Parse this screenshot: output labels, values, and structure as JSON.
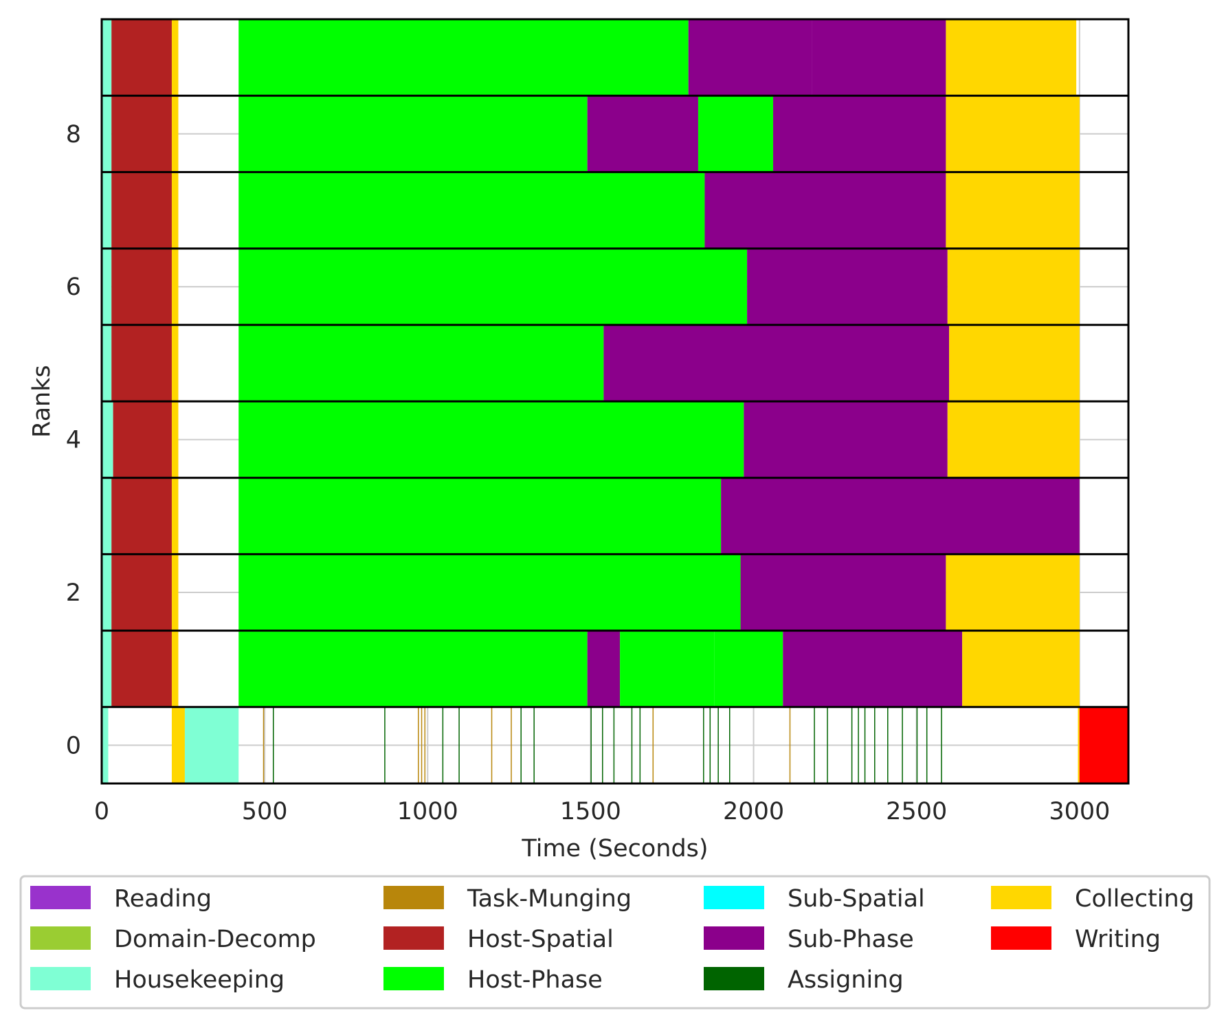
{
  "chart_data": {
    "type": "bar",
    "subtype": "gantt-timeline",
    "xlabel": "Time (Seconds)",
    "ylabel": "Ranks",
    "xlim": [
      0,
      3150
    ],
    "ylim": [
      -0.5,
      9.5
    ],
    "xticks": [
      "0",
      "500",
      "1000",
      "1500",
      "2000",
      "2500",
      "3000"
    ],
    "yticks": [
      "0",
      "2",
      "4",
      "6",
      "8"
    ],
    "grid": true,
    "legend_position": "bottom",
    "legend": [
      {
        "label": "Reading",
        "color": "#9932cc"
      },
      {
        "label": "Domain-Decomp",
        "color": "#9acd32"
      },
      {
        "label": "Housekeeping",
        "color": "#7fffd4"
      },
      {
        "label": "Task-Munging",
        "color": "#b8860b"
      },
      {
        "label": "Host-Spatial",
        "color": "#b22222"
      },
      {
        "label": "Host-Phase",
        "color": "#00ff00"
      },
      {
        "label": "Sub-Spatial",
        "color": "#00ffff"
      },
      {
        "label": "Sub-Phase",
        "color": "#8b008b"
      },
      {
        "label": "Assigning",
        "color": "#006400"
      },
      {
        "label": "Collecting",
        "color": "#ffd700"
      },
      {
        "label": "Writing",
        "color": "#ff0000"
      }
    ],
    "ranks": [
      {
        "rank": 0,
        "segments": [
          {
            "start": 0,
            "end": 20,
            "phase": "Housekeeping"
          },
          {
            "start": 215,
            "end": 255,
            "phase": "Collecting"
          },
          {
            "start": 255,
            "end": 420,
            "phase": "Housekeeping"
          },
          {
            "start": 2995,
            "end": 3000,
            "phase": "Collecting"
          },
          {
            "start": 3000,
            "end": 3150,
            "phase": "Writing"
          }
        ],
        "marks": [
          {
            "t": 495,
            "phase": "Task-Munging"
          },
          {
            "t": 525,
            "phase": "Assigning"
          },
          {
            "t": 867,
            "phase": "Assigning"
          },
          {
            "t": 970,
            "phase": "Task-Munging"
          },
          {
            "t": 980,
            "phase": "Task-Munging"
          },
          {
            "t": 990,
            "phase": "Task-Munging"
          },
          {
            "t": 1045,
            "phase": "Assigning"
          },
          {
            "t": 1095,
            "phase": "Assigning"
          },
          {
            "t": 1195,
            "phase": "Task-Munging"
          },
          {
            "t": 1255,
            "phase": "Task-Munging"
          },
          {
            "t": 1285,
            "phase": "Assigning"
          },
          {
            "t": 1325,
            "phase": "Assigning"
          },
          {
            "t": 1500,
            "phase": "Assigning"
          },
          {
            "t": 1535,
            "phase": "Assigning"
          },
          {
            "t": 1570,
            "phase": "Assigning"
          },
          {
            "t": 1625,
            "phase": "Assigning"
          },
          {
            "t": 1650,
            "phase": "Assigning"
          },
          {
            "t": 1690,
            "phase": "Task-Munging"
          },
          {
            "t": 1845,
            "phase": "Assigning"
          },
          {
            "t": 1865,
            "phase": "Assigning"
          },
          {
            "t": 1890,
            "phase": "Assigning"
          },
          {
            "t": 1925,
            "phase": "Assigning"
          },
          {
            "t": 2110,
            "phase": "Task-Munging"
          },
          {
            "t": 2185,
            "phase": "Assigning"
          },
          {
            "t": 2225,
            "phase": "Assigning"
          },
          {
            "t": 2300,
            "phase": "Assigning"
          },
          {
            "t": 2320,
            "phase": "Assigning"
          },
          {
            "t": 2340,
            "phase": "Assigning"
          },
          {
            "t": 2370,
            "phase": "Assigning"
          },
          {
            "t": 2410,
            "phase": "Assigning"
          },
          {
            "t": 2455,
            "phase": "Assigning"
          },
          {
            "t": 2500,
            "phase": "Assigning"
          },
          {
            "t": 2530,
            "phase": "Assigning"
          },
          {
            "t": 2575,
            "phase": "Assigning"
          }
        ]
      },
      {
        "rank": 1,
        "segments": [
          {
            "start": 0,
            "end": 30,
            "phase": "Housekeeping"
          },
          {
            "start": 30,
            "end": 215,
            "phase": "Host-Spatial"
          },
          {
            "start": 215,
            "end": 235,
            "phase": "Collecting"
          },
          {
            "start": 420,
            "end": 1490,
            "phase": "Host-Phase"
          },
          {
            "start": 1490,
            "end": 1590,
            "phase": "Sub-Phase"
          },
          {
            "start": 1590,
            "end": 1880,
            "phase": "Host-Phase"
          },
          {
            "start": 1880,
            "end": 2090,
            "phase": "Host-Phase"
          },
          {
            "start": 2090,
            "end": 2640,
            "phase": "Sub-Phase"
          },
          {
            "start": 2640,
            "end": 3000,
            "phase": "Collecting"
          }
        ]
      },
      {
        "rank": 2,
        "segments": [
          {
            "start": 0,
            "end": 30,
            "phase": "Housekeeping"
          },
          {
            "start": 30,
            "end": 215,
            "phase": "Host-Spatial"
          },
          {
            "start": 215,
            "end": 235,
            "phase": "Collecting"
          },
          {
            "start": 420,
            "end": 1960,
            "phase": "Host-Phase"
          },
          {
            "start": 1960,
            "end": 2590,
            "phase": "Sub-Phase"
          },
          {
            "start": 2590,
            "end": 3000,
            "phase": "Collecting"
          }
        ]
      },
      {
        "rank": 3,
        "segments": [
          {
            "start": 0,
            "end": 30,
            "phase": "Housekeeping"
          },
          {
            "start": 30,
            "end": 215,
            "phase": "Host-Spatial"
          },
          {
            "start": 215,
            "end": 235,
            "phase": "Collecting"
          },
          {
            "start": 420,
            "end": 1900,
            "phase": "Host-Phase"
          },
          {
            "start": 1900,
            "end": 3000,
            "phase": "Sub-Phase"
          }
        ]
      },
      {
        "rank": 4,
        "segments": [
          {
            "start": 0,
            "end": 35,
            "phase": "Housekeeping"
          },
          {
            "start": 35,
            "end": 215,
            "phase": "Host-Spatial"
          },
          {
            "start": 215,
            "end": 235,
            "phase": "Collecting"
          },
          {
            "start": 420,
            "end": 1970,
            "phase": "Host-Phase"
          },
          {
            "start": 1970,
            "end": 2595,
            "phase": "Sub-Phase"
          },
          {
            "start": 2595,
            "end": 3000,
            "phase": "Collecting"
          }
        ]
      },
      {
        "rank": 5,
        "segments": [
          {
            "start": 0,
            "end": 30,
            "phase": "Housekeeping"
          },
          {
            "start": 30,
            "end": 215,
            "phase": "Host-Spatial"
          },
          {
            "start": 215,
            "end": 235,
            "phase": "Collecting"
          },
          {
            "start": 420,
            "end": 1540,
            "phase": "Host-Phase"
          },
          {
            "start": 1540,
            "end": 2600,
            "phase": "Sub-Phase"
          },
          {
            "start": 2600,
            "end": 3000,
            "phase": "Collecting"
          }
        ]
      },
      {
        "rank": 6,
        "segments": [
          {
            "start": 0,
            "end": 30,
            "phase": "Housekeeping"
          },
          {
            "start": 30,
            "end": 215,
            "phase": "Host-Spatial"
          },
          {
            "start": 215,
            "end": 235,
            "phase": "Collecting"
          },
          {
            "start": 420,
            "end": 1980,
            "phase": "Host-Phase"
          },
          {
            "start": 1980,
            "end": 2595,
            "phase": "Sub-Phase"
          },
          {
            "start": 2595,
            "end": 3000,
            "phase": "Collecting"
          }
        ]
      },
      {
        "rank": 7,
        "segments": [
          {
            "start": 0,
            "end": 30,
            "phase": "Housekeeping"
          },
          {
            "start": 30,
            "end": 215,
            "phase": "Host-Spatial"
          },
          {
            "start": 215,
            "end": 235,
            "phase": "Collecting"
          },
          {
            "start": 420,
            "end": 1850,
            "phase": "Host-Phase"
          },
          {
            "start": 1850,
            "end": 2590,
            "phase": "Sub-Phase"
          },
          {
            "start": 2590,
            "end": 3000,
            "phase": "Collecting"
          }
        ]
      },
      {
        "rank": 8,
        "segments": [
          {
            "start": 0,
            "end": 30,
            "phase": "Housekeeping"
          },
          {
            "start": 30,
            "end": 215,
            "phase": "Host-Spatial"
          },
          {
            "start": 215,
            "end": 235,
            "phase": "Collecting"
          },
          {
            "start": 420,
            "end": 1490,
            "phase": "Host-Phase"
          },
          {
            "start": 1490,
            "end": 1830,
            "phase": "Sub-Phase"
          },
          {
            "start": 1830,
            "end": 2060,
            "phase": "Host-Phase"
          },
          {
            "start": 2060,
            "end": 2590,
            "phase": "Sub-Phase"
          },
          {
            "start": 2590,
            "end": 3000,
            "phase": "Collecting"
          }
        ]
      },
      {
        "rank": 9,
        "segments": [
          {
            "start": 0,
            "end": 30,
            "phase": "Housekeeping"
          },
          {
            "start": 30,
            "end": 215,
            "phase": "Host-Spatial"
          },
          {
            "start": 215,
            "end": 235,
            "phase": "Collecting"
          },
          {
            "start": 420,
            "end": 1800,
            "phase": "Host-Phase"
          },
          {
            "start": 1800,
            "end": 2180,
            "phase": "Sub-Phase"
          },
          {
            "start": 2180,
            "end": 2590,
            "phase": "Sub-Phase"
          },
          {
            "start": 2590,
            "end": 2990,
            "phase": "Collecting"
          }
        ]
      }
    ]
  }
}
